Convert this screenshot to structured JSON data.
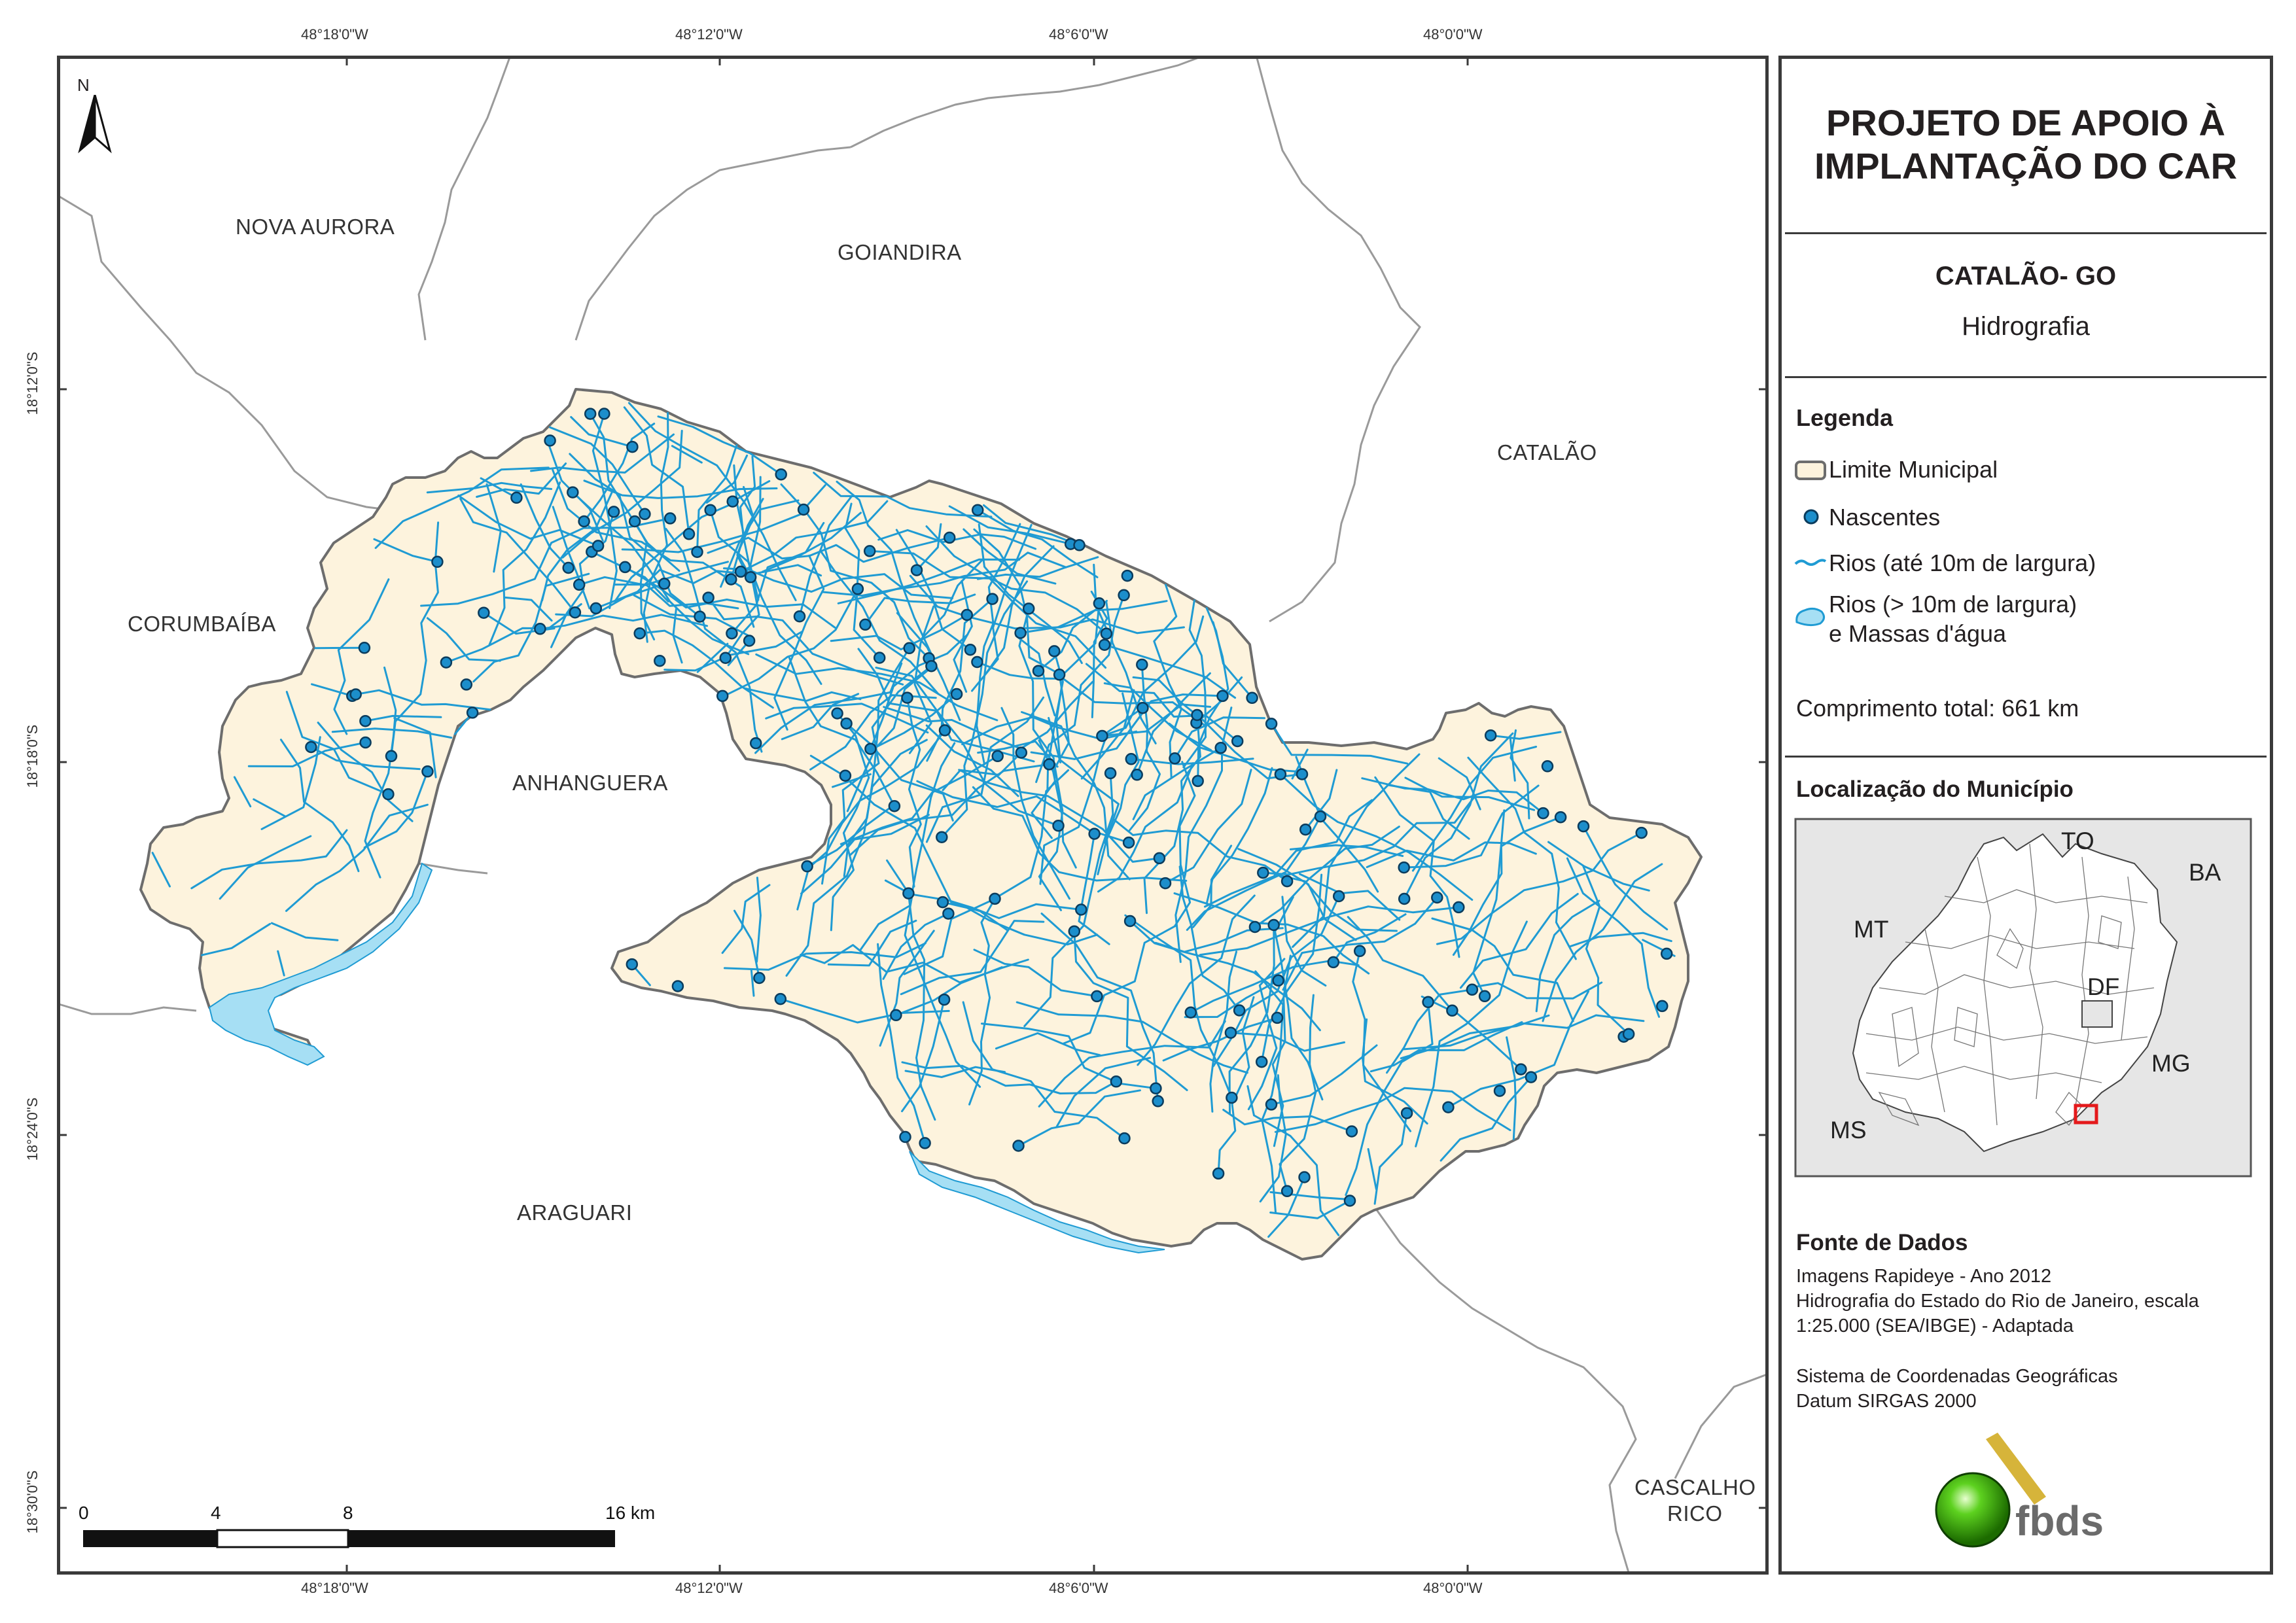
{
  "header": {
    "title_line1": "PROJETO DE APOIO À",
    "title_line2": "IMPLANTAÇÃO DO CAR",
    "municipality": "CATALÃO- GO",
    "theme": "Hidrografia"
  },
  "coords": {
    "top": [
      "48°18'0\"W",
      "48°12'0\"W",
      "48°6'0\"W",
      "48°0'0\"W"
    ],
    "bottom": [
      "48°18'0\"W",
      "48°12'0\"W",
      "48°6'0\"W",
      "48°0'0\"W"
    ],
    "left": [
      "18°12'0\"S",
      "18°18'0\"S",
      "18°24'0\"S",
      "18°30'0\"S"
    ]
  },
  "north_arrow": {
    "label": "N",
    "icon": "north-arrow-icon"
  },
  "neighbors": {
    "nova_aurora": "NOVA AURORA",
    "goiandira": "GOIANDIRA",
    "catalao": "CATALÃO",
    "corumbaiba": "CORUMBAÍBA",
    "anhanguera": "ANHANGUERA",
    "araguari": "ARAGUARI",
    "cascalho_rico_1": "CASCALHO",
    "cascalho_rico_2": "RICO"
  },
  "scale_bar": {
    "labels": [
      "0",
      "4",
      "8",
      "16 km"
    ]
  },
  "legend": {
    "title": "Legenda",
    "items": [
      {
        "label": "Limite Municipal",
        "icon": "municipal-boundary-icon"
      },
      {
        "label": "Nascentes",
        "icon": "spring-point-icon"
      },
      {
        "label": "Rios (até 10m de largura)",
        "icon": "river-line-icon"
      },
      {
        "label": "Rios (> 10m de largura)",
        "label2": "e Massas d'água",
        "icon": "water-body-icon"
      }
    ],
    "total": "Comprimento total: 661 km"
  },
  "location": {
    "title": "Localização do Município",
    "states": [
      "TO",
      "BA",
      "MT",
      "DF",
      "MG",
      "MS"
    ]
  },
  "sources": {
    "title": "Fonte de Dados",
    "lines": [
      "Imagens Rapideye - Ano 2012",
      "Hidrografia do Estado do Rio de Janeiro, escala",
      "1:25.000 (SEA/IBGE) - Adaptada"
    ],
    "crs_lines": [
      "Sistema de Coordenadas Geográficas",
      "Datum SIRGAS 2000"
    ]
  },
  "logo": {
    "text": "fbds",
    "icon": "fbds-logo-icon"
  },
  "colors": {
    "land": "#fdf3dd",
    "river": "#1f9bd3",
    "spring_fill": "#1c8ecb",
    "spring_stroke": "#0b3c5d",
    "boundary": "#6d6d6d",
    "water_body": "#a6dff4",
    "location_bg": "#e6e6e6",
    "highlight": "#e41a1c"
  }
}
